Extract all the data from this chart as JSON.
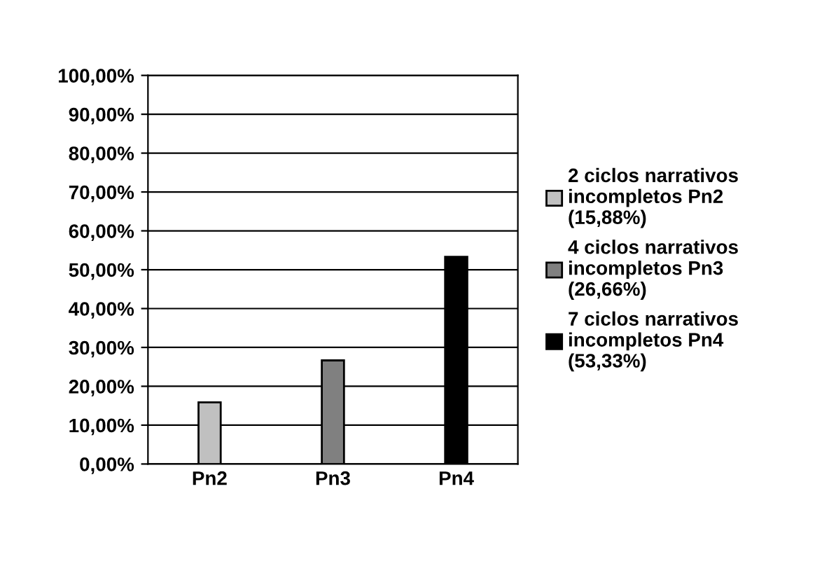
{
  "chart_data": {
    "type": "bar",
    "categories": [
      "Pn2",
      "Pn3",
      "Pn4"
    ],
    "series": [
      {
        "name": "2 ciclos narrativos\nincompletos Pn2\n(15,88%)",
        "color": "#c0c0c0",
        "values": [
          15.88,
          null,
          null
        ]
      },
      {
        "name": "4 ciclos narrativos\nincompletos Pn3\n(26,66%)",
        "color": "#808080",
        "values": [
          null,
          26.66,
          null
        ]
      },
      {
        "name": "7 ciclos narrativos\nincompletos Pn4\n(53,33%)",
        "color": "#000000",
        "values": [
          null,
          null,
          53.33
        ]
      }
    ],
    "ylim": [
      0,
      100
    ],
    "yticks": [
      {
        "value": 0,
        "label": "0,00%"
      },
      {
        "value": 10,
        "label": "10,00%"
      },
      {
        "value": 20,
        "label": "20,00%"
      },
      {
        "value": 30,
        "label": "30,00%"
      },
      {
        "value": 40,
        "label": "40,00%"
      },
      {
        "value": 50,
        "label": "50,00%"
      },
      {
        "value": 60,
        "label": "60,00%"
      },
      {
        "value": 70,
        "label": "70,00%"
      },
      {
        "value": 80,
        "label": "80,00%"
      },
      {
        "value": 90,
        "label": "90,00%"
      },
      {
        "value": 100,
        "label": "100,00%"
      }
    ],
    "grid": "y",
    "legend": "right"
  }
}
